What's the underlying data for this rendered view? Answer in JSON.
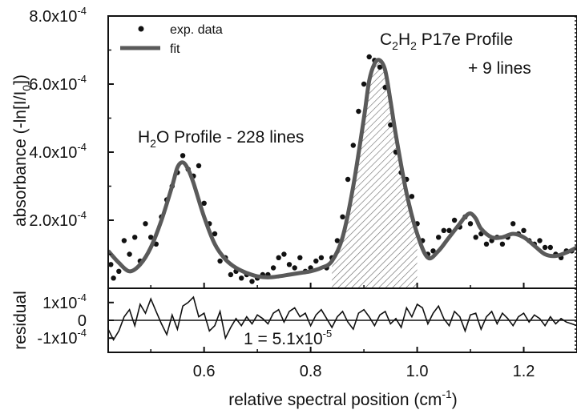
{
  "chart_data": [
    {
      "type": "scatter",
      "panel": "main",
      "title": "",
      "xlabel_main": "relative spectral position (cm",
      "xlabel_sup": "-1",
      "xlabel_end": ")",
      "ylabel_main": "absorbance (-ln[I/I",
      "ylabel_sub": "0",
      "ylabel_end": "])",
      "xlim": [
        0.42,
        1.3
      ],
      "ylim": [
        0,
        0.0008
      ],
      "x_ticks": [
        0.6,
        0.8,
        1.0,
        1.2
      ],
      "x_tick_labels": [
        "0.6",
        "0.8",
        "1.0",
        "1.2"
      ],
      "y_ticks": [
        0.0002,
        0.0004,
        0.0006,
        0.0008
      ],
      "y_tick_labels": [
        {
          "mant": "2.0x10",
          "exp": "-4"
        },
        {
          "mant": "4.0x10",
          "exp": "-4"
        },
        {
          "mant": "6.0x10",
          "exp": "-4"
        },
        {
          "mant": "8.0x10",
          "exp": "-4"
        }
      ],
      "legend_position": "top-left",
      "series": [
        {
          "name": "exp. data",
          "style": "points",
          "x": [
            0.425,
            0.43,
            0.44,
            0.45,
            0.46,
            0.47,
            0.48,
            0.49,
            0.5,
            0.51,
            0.52,
            0.53,
            0.54,
            0.55,
            0.56,
            0.57,
            0.58,
            0.59,
            0.6,
            0.61,
            0.62,
            0.63,
            0.64,
            0.65,
            0.66,
            0.67,
            0.68,
            0.69,
            0.7,
            0.71,
            0.72,
            0.73,
            0.74,
            0.75,
            0.76,
            0.77,
            0.78,
            0.79,
            0.8,
            0.81,
            0.82,
            0.83,
            0.84,
            0.85,
            0.86,
            0.87,
            0.88,
            0.89,
            0.9,
            0.91,
            0.92,
            0.93,
            0.94,
            0.95,
            0.96,
            0.97,
            0.98,
            0.99,
            1.0,
            1.01,
            1.02,
            1.03,
            1.04,
            1.05,
            1.06,
            1.07,
            1.08,
            1.09,
            1.1,
            1.11,
            1.12,
            1.13,
            1.14,
            1.15,
            1.16,
            1.17,
            1.18,
            1.19,
            1.2,
            1.21,
            1.22,
            1.23,
            1.24,
            1.25,
            1.26,
            1.27,
            1.28,
            1.29
          ],
          "y": [
            7e-05,
            3e-05,
            5e-05,
            0.00014,
            0.0001,
            0.00015,
            8e-05,
            0.00019,
            0.00015,
            0.00013,
            0.00021,
            0.00026,
            0.0003,
            0.00034,
            0.00039,
            0.00035,
            0.00033,
            0.00036,
            0.00025,
            0.00019,
            0.00016,
            8e-05,
            9e-05,
            4e-05,
            5e-05,
            3e-05,
            4e-05,
            2e-05,
            3e-05,
            4e-05,
            4e-05,
            6e-05,
            9e-05,
            0.0001,
            7e-05,
            6e-05,
            9e-05,
            5e-05,
            6e-05,
            8e-05,
            9e-05,
            6e-05,
            9e-05,
            0.00014,
            0.00021,
            0.00032,
            0.00042,
            0.00052,
            0.0006,
            0.00068,
            0.00067,
            0.00065,
            0.00059,
            0.00048,
            0.0004,
            0.00034,
            0.00032,
            0.00027,
            0.00019,
            0.00014,
            0.0001,
            0.00011,
            0.00015,
            0.00017,
            0.00017,
            0.0002,
            0.00018,
            0.00021,
            0.00019,
            0.00015,
            0.00016,
            0.00013,
            0.00014,
            0.00015,
            0.00013,
            0.00015,
            0.00019,
            0.00016,
            0.00017,
            0.00014,
            0.00013,
            0.00014,
            0.00012,
            0.00012,
            0.0001,
            9e-05,
            0.00011,
            0.00011
          ]
        },
        {
          "name": "fit",
          "style": "line",
          "color": "#5a5a5a",
          "x": [
            0.42,
            0.44,
            0.46,
            0.48,
            0.5,
            0.52,
            0.54,
            0.55,
            0.56,
            0.57,
            0.58,
            0.6,
            0.62,
            0.64,
            0.66,
            0.68,
            0.7,
            0.72,
            0.74,
            0.76,
            0.78,
            0.8,
            0.82,
            0.84,
            0.86,
            0.88,
            0.9,
            0.91,
            0.92,
            0.93,
            0.94,
            0.95,
            0.96,
            0.98,
            1.0,
            1.02,
            1.04,
            1.06,
            1.08,
            1.09,
            1.1,
            1.11,
            1.12,
            1.14,
            1.16,
            1.18,
            1.2,
            1.22,
            1.24,
            1.26,
            1.28,
            1.3
          ],
          "y": [
            0.00011,
            7.5e-05,
            5e-05,
            7e-05,
            0.00012,
            0.0002,
            0.0003,
            0.000355,
            0.00037,
            0.00035,
            0.00031,
            0.00021,
            0.00013,
            8.5e-05,
            6e-05,
            4.5e-05,
            3.5e-05,
            3.2e-05,
            3.5e-05,
            4e-05,
            4.5e-05,
            5e-05,
            6e-05,
            8e-05,
            0.00015,
            0.0003,
            0.0005,
            0.00061,
            0.00066,
            0.00067,
            0.00064,
            0.00055,
            0.00045,
            0.00028,
            0.00016,
            9e-05,
            0.00011,
            0.00015,
            0.00019,
            0.00021,
            0.00022,
            0.000205,
            0.000175,
            0.00015,
            0.00015,
            0.00016,
            0.00015,
            0.000125,
            0.0001,
            9.5e-05,
            0.000105,
            0.00012
          ]
        }
      ],
      "shaded_region": {
        "x_range": [
          0.84,
          1.015
        ],
        "pattern": "diagonal hatch"
      },
      "annotations": {
        "h2o_a": "H",
        "h2o_sub": "2",
        "h2o_b": "O Profile - 228 lines",
        "c2h2_a": "C",
        "c2h2_sub1": "2",
        "c2h2_b": "H",
        "c2h2_sub2": "2",
        "c2h2_c": " P17e Profile",
        "c2h2_lines": "+ 9 lines"
      }
    },
    {
      "type": "line",
      "panel": "residual",
      "ylabel": "residual",
      "xlim": [
        0.42,
        1.3
      ],
      "ylim": [
        -0.00018,
        0.00018
      ],
      "y_ticks": [
        0.0001,
        0,
        -0.0001
      ],
      "y_tick_labels": [
        {
          "mant": "1x10",
          "exp": "-4"
        },
        {
          "mant": "0",
          "exp": ""
        },
        {
          "mant": "-1x10",
          "exp": "-4"
        }
      ],
      "zero_line": true,
      "annotation": {
        "sigma": "1",
        "eq": " = 5.1x10",
        "exp": "-5"
      },
      "x": [
        0.42,
        0.43,
        0.44,
        0.45,
        0.46,
        0.47,
        0.48,
        0.49,
        0.5,
        0.51,
        0.52,
        0.53,
        0.54,
        0.55,
        0.56,
        0.57,
        0.58,
        0.59,
        0.6,
        0.61,
        0.62,
        0.63,
        0.64,
        0.65,
        0.66,
        0.67,
        0.68,
        0.69,
        0.7,
        0.71,
        0.72,
        0.73,
        0.74,
        0.75,
        0.76,
        0.77,
        0.78,
        0.79,
        0.8,
        0.81,
        0.82,
        0.83,
        0.84,
        0.85,
        0.86,
        0.87,
        0.88,
        0.89,
        0.9,
        0.91,
        0.92,
        0.93,
        0.94,
        0.95,
        0.96,
        0.97,
        0.98,
        0.99,
        1.0,
        1.01,
        1.02,
        1.03,
        1.04,
        1.05,
        1.06,
        1.07,
        1.08,
        1.09,
        1.1,
        1.11,
        1.12,
        1.13,
        1.14,
        1.15,
        1.16,
        1.17,
        1.18,
        1.19,
        1.2,
        1.21,
        1.22,
        1.23,
        1.24,
        1.25,
        1.26,
        1.27,
        1.28,
        1.29,
        1.3
      ],
      "y": [
        -5e-05,
        -0.00011,
        -6e-05,
        2e-05,
        6e-05,
        -3e-05,
        9e-05,
        4e-05,
        0.00012,
        5e-05,
        -2e-05,
        -8e-05,
        3e-05,
        -5e-05,
        8e-05,
        0.0001,
        0.00013,
        2e-05,
        4e-05,
        -6e-05,
        -3e-05,
        5e-05,
        -0.0001,
        -4e-05,
        1e-05,
        -3e-05,
        2e-05,
        -2e-05,
        3e-05,
        1e-05,
        -2e-05,
        4e-05,
        6e-05,
        -1e-05,
        5e-05,
        7e-05,
        2e-05,
        4e-05,
        -3e-05,
        3e-05,
        6e-05,
        1e-05,
        -4e-05,
        2e-05,
        5e-05,
        -1e-05,
        -5e-05,
        4e-05,
        6e-05,
        2e-05,
        -3e-05,
        3e-05,
        5e-05,
        -2e-05,
        1e-05,
        -4e-05,
        7e-05,
        2e-05,
        9e-05,
        7e-05,
        -2e-05,
        4e-05,
        8e-05,
        1e-05,
        -3e-05,
        5e-05,
        2e-05,
        -6e-05,
        3e-05,
        4e-05,
        -5e-05,
        2e-05,
        5e-05,
        -2e-05,
        4e-05,
        1e-05,
        -3e-05,
        2e-05,
        4e-05,
        -1e-05,
        3e-05,
        1e-05,
        -3e-05,
        2e-05,
        -2e-05,
        1e-05,
        -1e-05,
        -2e-05,
        -3e-05
      ]
    }
  ],
  "legend": {
    "exp_label": "exp. data",
    "fit_label": "fit"
  }
}
